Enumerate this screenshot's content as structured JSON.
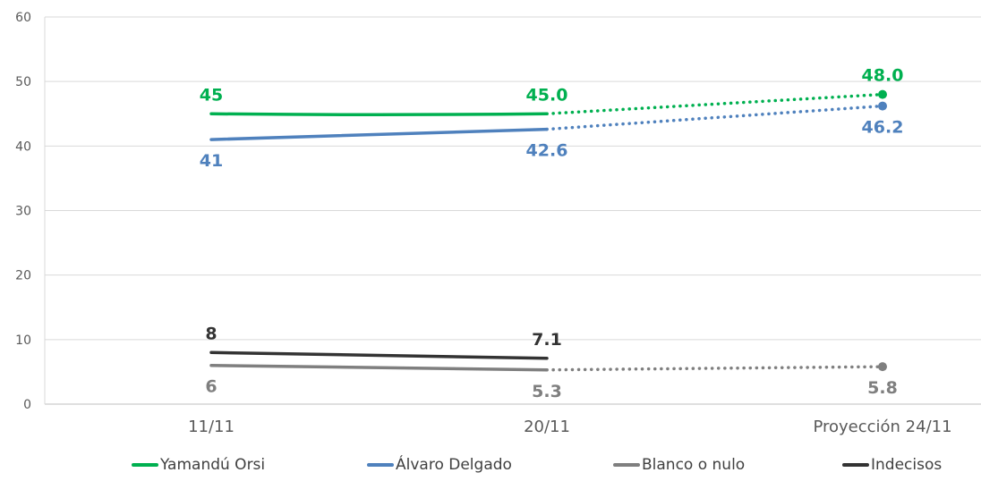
{
  "chart_data": {
    "type": "line",
    "title": "",
    "xlabel": "",
    "ylabel": "",
    "categories": [
      "11/11",
      "20/11",
      "Proyección 24/11"
    ],
    "ylim": [
      0,
      60
    ],
    "yticks": [
      0,
      10,
      20,
      30,
      40,
      50,
      60
    ],
    "grid": true,
    "legend_position": "bottom",
    "series": [
      {
        "name": "Yamandú Orsi",
        "color": "#00B050",
        "values": [
          45,
          45.0,
          48.0
        ],
        "labels": [
          "45",
          "45.0",
          "48.0"
        ],
        "label_side": "above",
        "projected": true
      },
      {
        "name": "Álvaro Delgado",
        "color": "#4F81BD",
        "values": [
          41,
          42.6,
          46.2
        ],
        "labels": [
          "41",
          "42.6",
          "46.2"
        ],
        "label_side": "below",
        "projected": true
      },
      {
        "name": "Blanco o nulo",
        "color": "#7F7F7F",
        "values": [
          6,
          5.3,
          5.8
        ],
        "labels": [
          "6",
          "5.3",
          "5.8"
        ],
        "label_side": "below",
        "projected": true
      },
      {
        "name": "Indecisos",
        "color": "#333333",
        "values": [
          8,
          7.1,
          null
        ],
        "labels": [
          "8",
          "7.1",
          null
        ],
        "label_side": "above",
        "projected": false
      }
    ]
  }
}
